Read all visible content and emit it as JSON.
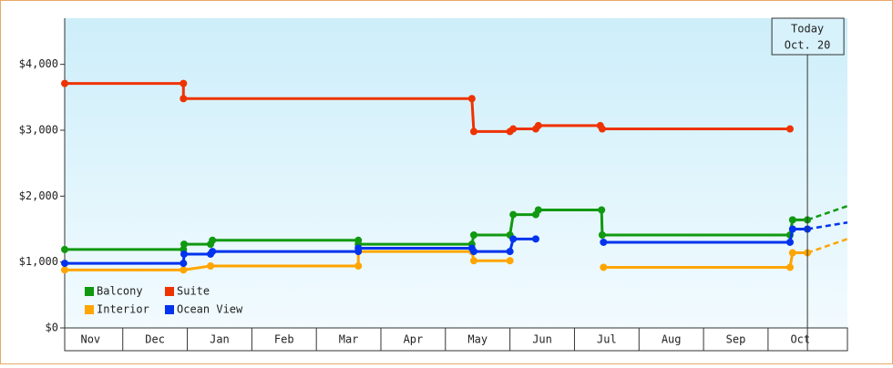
{
  "chart_data": {
    "type": "line",
    "step_markers": true,
    "xlim": [
      0.1,
      12.23
    ],
    "xticks": [
      {
        "value": 0.5,
        "label": "Nov"
      },
      {
        "value": 1.5,
        "label": "Dec"
      },
      {
        "value": 2.5,
        "label": "Jan"
      },
      {
        "value": 3.5,
        "label": "Feb"
      },
      {
        "value": 4.5,
        "label": "Mar"
      },
      {
        "value": 5.5,
        "label": "Apr"
      },
      {
        "value": 6.5,
        "label": "May"
      },
      {
        "value": 7.5,
        "label": "Jun"
      },
      {
        "value": 8.5,
        "label": "Jul"
      },
      {
        "value": 9.5,
        "label": "Aug"
      },
      {
        "value": 10.5,
        "label": "Sep"
      },
      {
        "value": 11.5,
        "label": "Oct"
      }
    ],
    "ylim": [
      0,
      4700
    ],
    "yticks": [
      {
        "value": 0,
        "label": "$0"
      },
      {
        "value": 1000,
        "label": "$1,000"
      },
      {
        "value": 2000,
        "label": "$2,000"
      },
      {
        "value": 3000,
        "label": "$3,000"
      },
      {
        "value": 4000,
        "label": "$4,000"
      }
    ],
    "today": {
      "x": 11.61,
      "label": "Today",
      "date": "Oct. 20"
    },
    "series": [
      {
        "name": "Balcony",
        "color": "#119911",
        "x": [
          0.1,
          1.94,
          1.95,
          2.36,
          2.39,
          4.65,
          4.65,
          6.41,
          6.44,
          7.0,
          7.05,
          7.4,
          7.44,
          8.42,
          8.43,
          11.34,
          11.38,
          11.61
        ],
        "values": [
          1190,
          1190,
          1270,
          1270,
          1330,
          1330,
          1270,
          1270,
          1410,
          1410,
          1720,
          1720,
          1790,
          1790,
          1410,
          1410,
          1640,
          1640
        ],
        "forecast_x": [
          11.61,
          12.23
        ],
        "forecast_values": [
          1640,
          1850
        ]
      },
      {
        "name": "Suite",
        "color": "#ee3300",
        "x": [
          0.1,
          1.94,
          1.94,
          6.41,
          6.44,
          7.0,
          7.05,
          7.4,
          7.44,
          8.4,
          8.43,
          11.34
        ],
        "values": [
          3710,
          3710,
          3480,
          3480,
          2980,
          2980,
          3020,
          3020,
          3070,
          3070,
          3020,
          3020
        ]
      },
      {
        "name": "Interior",
        "color": "#ffa500",
        "x": [
          0.1,
          1.94,
          2.36,
          4.65,
          4.65,
          6.41,
          6.44,
          7.0,
          7.7,
          8.45,
          11.34,
          11.38,
          11.61
        ],
        "values": [
          880,
          880,
          940,
          940,
          1160,
          1160,
          1020,
          1020,
          null,
          920,
          920,
          1140,
          1140
        ],
        "forecast_x": [
          11.61,
          12.23
        ],
        "forecast_values": [
          1140,
          1350
        ]
      },
      {
        "name": "Ocean View",
        "color": "#0033ee",
        "x": [
          0.1,
          1.94,
          1.95,
          2.36,
          2.39,
          4.65,
          4.65,
          6.41,
          6.44,
          7.0,
          7.05,
          7.4,
          7.7,
          8.45,
          11.34,
          11.38,
          11.61
        ],
        "values": [
          980,
          980,
          1120,
          1120,
          1160,
          1160,
          1210,
          1210,
          1160,
          1160,
          1350,
          1350,
          null,
          1300,
          1300,
          1500,
          1500
        ],
        "forecast_x": [
          11.61,
          12.23
        ],
        "forecast_values": [
          1500,
          1600
        ]
      }
    ]
  }
}
